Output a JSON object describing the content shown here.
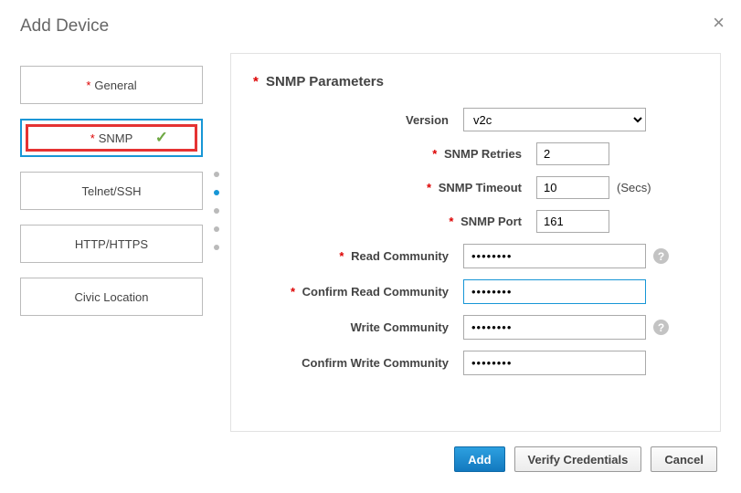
{
  "title": "Add Device",
  "sidebar": {
    "items": [
      {
        "label": "General",
        "required": true
      },
      {
        "label": "SNMP",
        "required": true,
        "selected": true,
        "checked": true
      },
      {
        "label": "Telnet/SSH",
        "required": false
      },
      {
        "label": "HTTP/HTTPS",
        "required": false
      },
      {
        "label": "Civic Location",
        "required": false
      }
    ]
  },
  "panel": {
    "title": "SNMP Parameters",
    "version_label": "Version",
    "version_value": "v2c",
    "retries_label": "SNMP Retries",
    "retries_value": "2",
    "timeout_label": "SNMP Timeout",
    "timeout_value": "10",
    "timeout_suffix": "(Secs)",
    "port_label": "SNMP Port",
    "port_value": "161",
    "read_comm_label": "Read Community",
    "read_comm_value": "••••••••",
    "confirm_read_label": "Confirm Read Community",
    "confirm_read_value": "••••••••",
    "write_comm_label": "Write Community",
    "write_comm_value": "••••••••",
    "confirm_write_label": "Confirm Write Community",
    "confirm_write_value": "••••••••"
  },
  "footer": {
    "add": "Add",
    "verify": "Verify Credentials",
    "cancel": "Cancel"
  },
  "colors": {
    "accent": "#1796d6",
    "required": "#d00",
    "highlight_border": "#e53333",
    "check": "#6ea843"
  }
}
